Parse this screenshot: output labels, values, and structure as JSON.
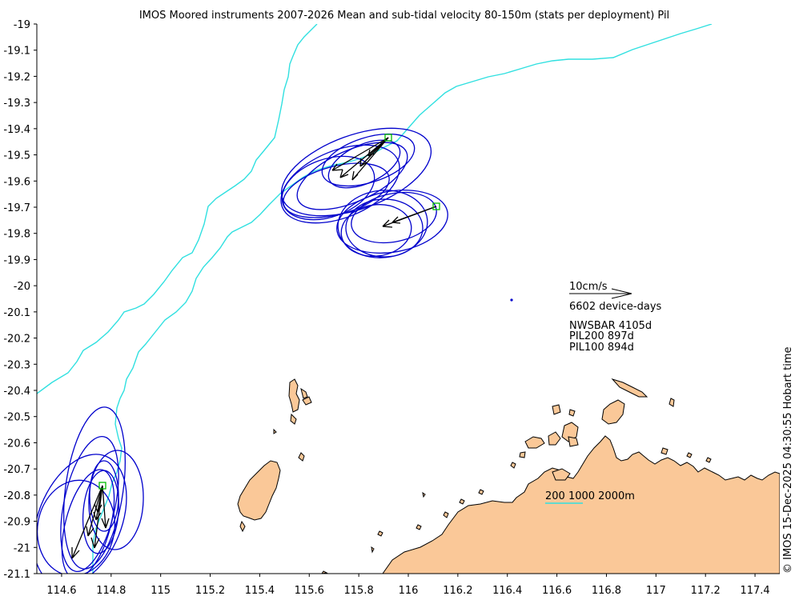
{
  "title": "IMOS Moored instruments 2007-2026 Mean and sub-tidal velocity 80-150m (stats per deployment) Pil",
  "timestamp": "© IMOS 15-Dec-2025 04:30:55 Hobart time",
  "colors": {
    "land": "#fac898",
    "coast": "#000000",
    "bathy": "#30e0e0",
    "ellipse": "#0000cc",
    "arrow": "#000000",
    "station": "#00bb00"
  },
  "axes": {
    "lon_range": [
      114.5,
      117.5
    ],
    "lat_range": [
      -21.1,
      -19.0
    ],
    "lon_ticks": [
      "114.6",
      "114.8",
      "115",
      "115.2",
      "115.4",
      "115.6",
      "115.8",
      "116",
      "116.2",
      "116.4",
      "116.6",
      "116.8",
      "117",
      "117.2",
      "117.4"
    ],
    "lat_ticks": [
      "-19",
      "-19.1",
      "-19.2",
      "-19.3",
      "-19.4",
      "-19.5",
      "-19.6",
      "-19.7",
      "-19.8",
      "-19.9",
      "-20",
      "-20.1",
      "-20.2",
      "-20.3",
      "-20.4",
      "-20.5",
      "-20.6",
      "-20.7",
      "-20.8",
      "-20.9",
      "-21",
      "-21.1"
    ]
  },
  "legend": {
    "scale_label": "10cm/s",
    "device_days": "6602 device-days",
    "stations": [
      "NWSBAR 4105d",
      "PIL200 897d",
      "PIL100 894d"
    ],
    "isobath_label": "200 1000 2000m"
  },
  "chart_data": {
    "type": "map",
    "moorings": [
      {
        "name": "NWSBAR",
        "lon": 115.91,
        "lat": -19.435,
        "days": 4105
      },
      {
        "name": "PIL200",
        "lon": 116.11,
        "lat": -19.695,
        "days": 897
      },
      {
        "name": "PIL100",
        "lon": 114.76,
        "lat": -20.765,
        "days": 894
      }
    ],
    "isobaths_m": [
      200,
      1000,
      2000
    ],
    "scale_arrow_cm_s": 10,
    "total_device_days": 6602,
    "isolated_point": {
      "lon": 116.42,
      "lat": -20.055
    }
  }
}
